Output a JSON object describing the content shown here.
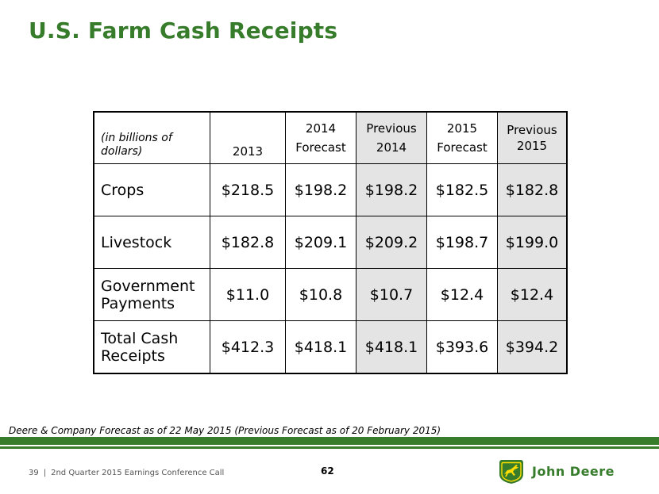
{
  "title": "U.S. Farm Cash Receipts",
  "table": {
    "headers": {
      "units": "(in billions of dollars)",
      "col_2013": "2013",
      "col_2014f_line1": "2014",
      "col_2014f_line2": "Forecast",
      "col_prev2014_line1": "Previous",
      "col_prev2014_line2": "2014",
      "col_2015f_line1": "2015",
      "col_2015f_line2": "Forecast",
      "col_prev2015_line1": "Previous",
      "col_prev2015_line2": "2015"
    },
    "rows": [
      {
        "label_line1": "Crops",
        "label_line2": "",
        "values": [
          "$218.5",
          "$198.2",
          "$198.2",
          "$182.5",
          "$182.8"
        ]
      },
      {
        "label_line1": "Livestock",
        "label_line2": "",
        "values": [
          "$182.8",
          "$209.1",
          "$209.2",
          "$198.7",
          "$199.0"
        ]
      },
      {
        "label_line1": "Government",
        "label_line2": "Payments",
        "values": [
          "$11.0",
          "$10.8",
          "$10.7",
          "$12.4",
          "$12.4"
        ]
      },
      {
        "label_line1": "Total Cash",
        "label_line2": "Receipts",
        "values": [
          "$412.3",
          "$418.1",
          "$418.1",
          "$393.6",
          "$394.2"
        ]
      }
    ]
  },
  "note": "Deere & Company Forecast as of 22 May 2015 (Previous Forecast as of 20 February 2015)",
  "footer": {
    "slide_number": "39",
    "separator": "|",
    "event": "2nd Quarter 2015 Earnings Conference Call",
    "page_number": "62"
  },
  "logo": {
    "text": "John Deere",
    "icon": "leaping-deer-logo-icon",
    "brand_green": "#367c2b",
    "brand_yellow": "#ffde00"
  }
}
